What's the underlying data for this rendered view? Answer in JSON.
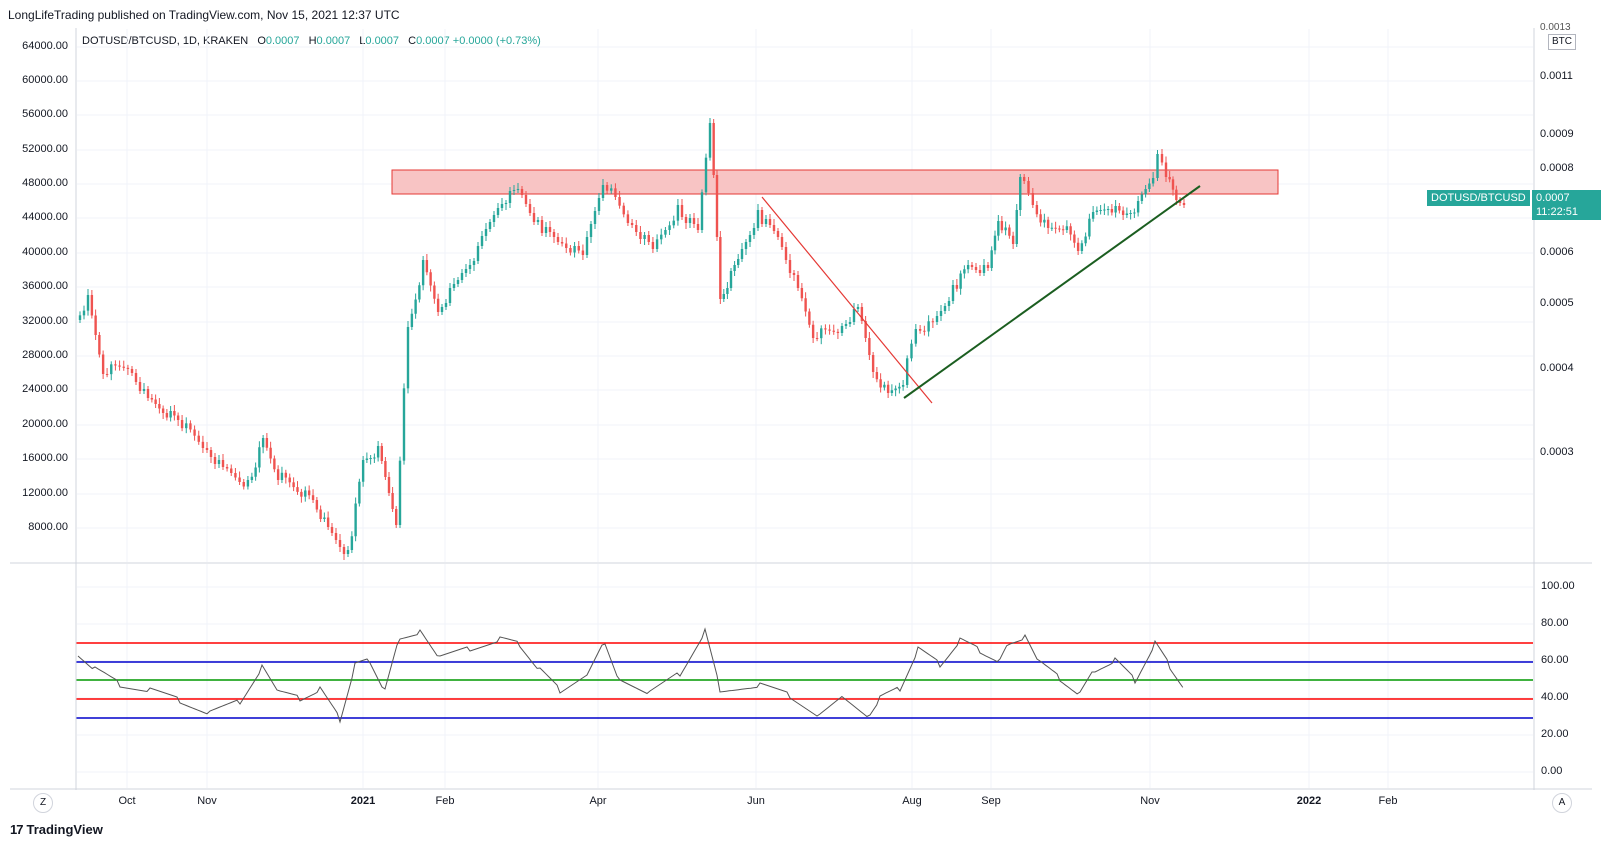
{
  "header": {
    "published_line": "LongLifeTrading published on TradingView.com, Nov 15, 2021 12:37 UTC"
  },
  "legend": {
    "symbol": "DOTUSD/BTCUSD, 1D, KRAKEN",
    "o_label": "O",
    "o_value": "0.0007",
    "h_label": "H",
    "h_value": "0.0007",
    "l_label": "L",
    "l_value": "0.0007",
    "c_label": "C",
    "c_value": "0.0007",
    "change": "+0.0000 (+0.73%)"
  },
  "left_axis": [
    "64000.00",
    "60000.00",
    "56000.00",
    "52000.00",
    "48000.00",
    "44000.00",
    "40000.00",
    "36000.00",
    "32000.00",
    "28000.00",
    "24000.00",
    "20000.00",
    "16000.00",
    "12000.00",
    "8000.00"
  ],
  "right_axis": [
    "0.0011",
    "0.0009",
    "0.0008",
    "0.0006",
    "0.0005",
    "0.0004",
    "0.0003"
  ],
  "right_axis_top_partial": "0.0013",
  "currency": "BTC",
  "price_tag": {
    "symbol": "DOTUSD/BTCUSD",
    "value": "0.0007",
    "countdown": "11:22:51"
  },
  "rsi_axis": [
    "100.00",
    "80.00",
    "60.00",
    "40.00",
    "20.00",
    "0.00"
  ],
  "time_axis": [
    {
      "label": "Oct",
      "year": false
    },
    {
      "label": "Nov",
      "year": false
    },
    {
      "label": "2021",
      "year": true
    },
    {
      "label": "Feb",
      "year": false
    },
    {
      "label": "Apr",
      "year": false
    },
    {
      "label": "Jun",
      "year": false
    },
    {
      "label": "Aug",
      "year": false
    },
    {
      "label": "Sep",
      "year": false
    },
    {
      "label": "Nov",
      "year": false
    },
    {
      "label": "2022",
      "year": true
    },
    {
      "label": "Feb",
      "year": false
    }
  ],
  "buttons": {
    "left_circle": "Z",
    "right_circle": "A"
  },
  "footer": {
    "brand": "TradingView",
    "mark": "17"
  },
  "colors": {
    "up": "#26a69a",
    "down": "#ef5350",
    "resistance_fill": "#f8bbbb",
    "resistance_border": "#e53935",
    "trend_up": "#1b5e20",
    "trend_down": "#e53935",
    "rsi_line": "#555555",
    "rsi_red": "#ff0000",
    "rsi_blue": "#0000cc",
    "rsi_green": "#009900"
  }
}
